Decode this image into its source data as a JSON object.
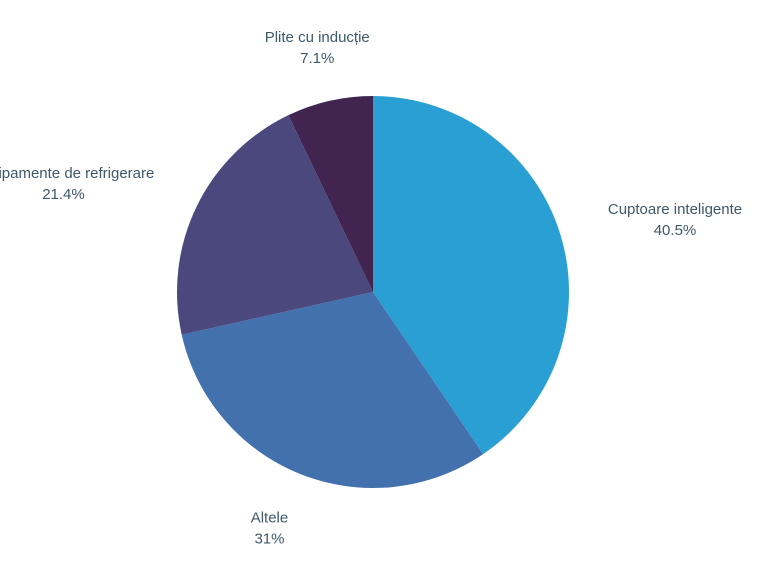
{
  "chart_data": {
    "type": "pie",
    "title": "",
    "start_angle_deg": 0,
    "direction": "clockwise",
    "slices": [
      {
        "name": "Cuptoare inteligente",
        "value": 40.5,
        "value_label": "40.5%",
        "color": "#2a9fd4"
      },
      {
        "name": "Altele",
        "value": 31,
        "value_label": "31%",
        "color": "#4271ad"
      },
      {
        "name": "Echipamente de refrigerare",
        "value": 21.4,
        "value_label": "21.4%",
        "color": "#4a487d"
      },
      {
        "name": "Plite cu inducție",
        "value": 7.1,
        "value_label": "7.1%",
        "color": "#41244f"
      }
    ]
  }
}
